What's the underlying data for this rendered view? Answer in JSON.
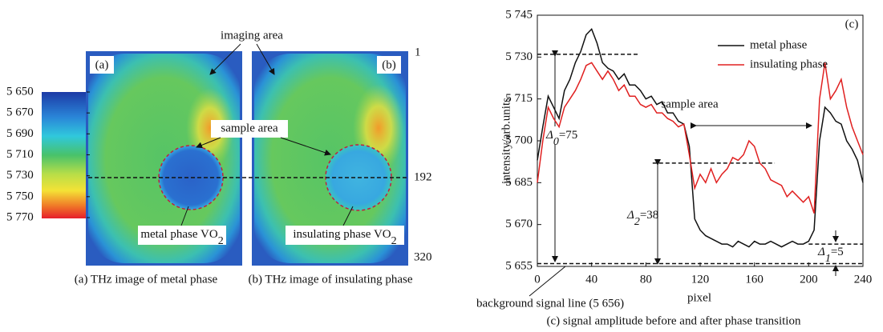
{
  "thz_images": {
    "colorbar_ticks": [
      {
        "value": 5650,
        "label": "5 650"
      },
      {
        "value": 5670,
        "label": "5 670"
      },
      {
        "value": 5690,
        "label": "5 690"
      },
      {
        "value": 5710,
        "label": "5 710"
      },
      {
        "value": 5730,
        "label": "5 730"
      },
      {
        "value": 5750,
        "label": "5 750"
      },
      {
        "value": 5770,
        "label": "5 770"
      }
    ],
    "panel_a": "(a)",
    "panel_b": "(b)",
    "imaging_area": "imaging area",
    "sample_area": "sample area",
    "row_labels": [
      "1",
      "192",
      "320"
    ],
    "metal_label": {
      "text": "metal phase VO",
      "sub": "2"
    },
    "insulating_label": {
      "text": "insulating phase VO",
      "sub": "2"
    },
    "caption_a": "(a) THz image of metal phase",
    "caption_b": "(b) THz image of insulating phase"
  },
  "chart_data": {
    "type": "line",
    "panel": "(c)",
    "x_label": "pixel",
    "y_label": "intensity/arb.units",
    "caption": "(c) signal amplitude before and after phase transition",
    "xlim": [
      0,
      240
    ],
    "xticks": [
      0,
      40,
      80,
      120,
      160,
      200,
      240
    ],
    "ylim": [
      5655,
      5745
    ],
    "yticks": [
      {
        "value": 5655,
        "label": "5 655"
      },
      {
        "value": 5670,
        "label": "5 670"
      },
      {
        "value": 5685,
        "label": "5 685"
      },
      {
        "value": 5700,
        "label": "5 700"
      },
      {
        "value": 5715,
        "label": "5 715"
      },
      {
        "value": 5730,
        "label": "5 730"
      },
      {
        "value": 5745,
        "label": "5 745"
      }
    ],
    "x": [
      0,
      4,
      8,
      12,
      16,
      20,
      24,
      28,
      32,
      36,
      40,
      44,
      48,
      52,
      56,
      60,
      64,
      68,
      72,
      76,
      80,
      84,
      88,
      92,
      96,
      100,
      104,
      108,
      112,
      116,
      120,
      124,
      128,
      132,
      136,
      140,
      144,
      148,
      152,
      156,
      160,
      164,
      168,
      172,
      176,
      180,
      184,
      188,
      192,
      196,
      200,
      204,
      208,
      212,
      216,
      220,
      224,
      228,
      232,
      236,
      240
    ],
    "series": [
      {
        "name": "metal phase",
        "color": "#111111",
        "values": [
          5693,
          5705,
          5716,
          5712,
          5708,
          5718,
          5722,
          5728,
          5732,
          5738,
          5740,
          5735,
          5728,
          5726,
          5725,
          5722,
          5724,
          5720,
          5720,
          5718,
          5715,
          5716,
          5713,
          5714,
          5710,
          5710,
          5707,
          5706,
          5698,
          5672,
          5668,
          5666,
          5665,
          5664,
          5663,
          5663,
          5662,
          5664,
          5663,
          5662,
          5664,
          5663,
          5663,
          5664,
          5663,
          5662,
          5663,
          5664,
          5663,
          5663,
          5664,
          5668,
          5700,
          5712,
          5710,
          5707,
          5706,
          5700,
          5697,
          5693,
          5685
        ]
      },
      {
        "name": "insulating phase",
        "color": "#e02020",
        "values": [
          5685,
          5700,
          5712,
          5708,
          5705,
          5712,
          5715,
          5718,
          5722,
          5727,
          5728,
          5725,
          5722,
          5725,
          5722,
          5718,
          5720,
          5716,
          5716,
          5713,
          5712,
          5713,
          5710,
          5710,
          5708,
          5707,
          5705,
          5706,
          5695,
          5683,
          5688,
          5685,
          5690,
          5685,
          5688,
          5690,
          5694,
          5693,
          5695,
          5700,
          5698,
          5692,
          5690,
          5686,
          5685,
          5684,
          5680,
          5682,
          5680,
          5678,
          5680,
          5674,
          5715,
          5728,
          5715,
          5718,
          5722,
          5712,
          5705,
          5700,
          5695
        ]
      }
    ],
    "reference_lines": [
      {
        "y": 5731,
        "x": [
          0,
          75
        ]
      },
      {
        "y": 5692,
        "x": [
          85,
          175
        ]
      },
      {
        "y": 5663,
        "x": [
          200,
          240
        ]
      },
      {
        "y": 5656,
        "x": [
          0,
          240
        ]
      }
    ],
    "sample_area": "sample area",
    "delta0": {
      "symbol": "Δ",
      "sub": "0",
      "rest": "=75"
    },
    "delta2": {
      "symbol": "Δ",
      "sub": "2",
      "rest": "=38"
    },
    "delta1": {
      "symbol": "Δ",
      "sub": "1",
      "rest": "=5"
    },
    "background_label": "background signal line (5 656)"
  }
}
